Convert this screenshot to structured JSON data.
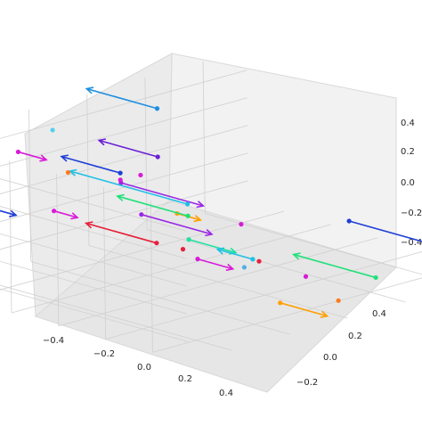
{
  "chart_data": {
    "type": "quiver3d",
    "title": "",
    "grid": true,
    "x_ticks": [
      "−0.4",
      "−0.2",
      "0.0",
      "0.2",
      "0.4"
    ],
    "y_ticks": [
      "−0.2",
      "0.0",
      "0.2",
      "0.4"
    ],
    "z_ticks": [
      "−0.4",
      "−0.2",
      "0.0",
      "0.2",
      "0.4"
    ],
    "vectors": [
      {
        "color": "#9b27e6",
        "tail": [
          0.15,
          0.45,
          0.5
        ],
        "dir": [
          0.35,
          0,
          0
        ]
      },
      {
        "color": "#d81bd8",
        "tail": [
          -0.25,
          0.48,
          0.55
        ],
        "dir": [
          0.12,
          0,
          0
        ]
      },
      {
        "color": "#ffa000",
        "tail": [
          0.45,
          0.5,
          0.45
        ],
        "dir": [
          0.1,
          0,
          0
        ]
      },
      {
        "color": "#1f3fd6",
        "tail": [
          0.5,
          -0.05,
          0.1
        ],
        "dir": [
          0.4,
          0,
          0
        ]
      },
      {
        "color": "#ffa000",
        "tail": [
          0.45,
          0.15,
          -0.4
        ],
        "dir": [
          0.2,
          0,
          0
        ]
      },
      {
        "color": "#20e0a0",
        "tail": [
          0.25,
          0.3,
          0.05
        ],
        "dir": [
          0.2,
          0,
          0
        ]
      },
      {
        "color": "#1f3fd6",
        "tail": [
          -0.45,
          0.45,
          0.05
        ],
        "dir": [
          0.15,
          0,
          0
        ]
      },
      {
        "color": "#d81bd8",
        "tail": [
          -0.2,
          0.4,
          0.1
        ],
        "dir": [
          0.1,
          0,
          0
        ]
      },
      {
        "color": "#e6203a",
        "tail": [
          0.05,
          0.25,
          -0.1
        ],
        "dir": [
          -0.3,
          0,
          0
        ]
      },
      {
        "color": "#9b27e6",
        "tail": [
          -0.2,
          0.1,
          -0.1
        ],
        "dir": [
          0.3,
          0,
          0
        ]
      },
      {
        "color": "#d81bd8",
        "tail": [
          0.1,
          0.15,
          -0.25
        ],
        "dir": [
          0.15,
          0,
          0
        ]
      },
      {
        "color": "#1f3fd6",
        "tail": [
          -0.35,
          0.05,
          0.1
        ],
        "dir": [
          -0.25,
          0,
          0
        ]
      },
      {
        "color": "#1f8fe0",
        "tail": [
          -0.5,
          -0.2,
          0.35
        ],
        "dir": [
          -0.3,
          0,
          0
        ]
      },
      {
        "color": "#6a1fd6",
        "tail": [
          -0.5,
          -0.2,
          0.0
        ],
        "dir": [
          -0.25,
          0,
          0
        ]
      },
      {
        "color": "#20e07a",
        "tail": [
          -0.25,
          -0.1,
          -0.25
        ],
        "dir": [
          -0.3,
          0,
          0
        ]
      },
      {
        "color": "#20bfe6",
        "tail": [
          -0.5,
          -0.3,
          -0.4
        ],
        "dir": [
          -0.5,
          0,
          0
        ]
      },
      {
        "color": "#20bfe6",
        "tail": [
          -0.1,
          -0.2,
          -0.55
        ],
        "dir": [
          -0.15,
          0,
          0
        ]
      },
      {
        "color": "#20e07a",
        "tail": [
          0.3,
          -0.3,
          -0.55
        ],
        "dir": [
          -0.35,
          0,
          0
        ]
      },
      {
        "color": "#ff7a1a",
        "tail": [
          -0.2,
          0.35,
          0.35
        ],
        "dir": [
          0,
          0,
          0
        ]
      },
      {
        "color": "#4fd0f0",
        "tail": [
          -0.45,
          0.2,
          0.45
        ],
        "dir": [
          0,
          0,
          0
        ]
      },
      {
        "color": "#d81bd8",
        "tail": [
          0.35,
          0.2,
          0.15
        ],
        "dir": [
          0,
          0,
          0
        ]
      },
      {
        "color": "#d81bd8",
        "tail": [
          -0.35,
          0.05,
          0.05
        ],
        "dir": [
          0,
          0,
          0
        ]
      },
      {
        "color": "#d81bd8",
        "tail": [
          -0.45,
          -0.1,
          -0.05
        ],
        "dir": [
          0,
          0,
          0
        ]
      },
      {
        "color": "#e6203a",
        "tail": [
          0.1,
          0.2,
          -0.15
        ],
        "dir": [
          0,
          0,
          0
        ]
      },
      {
        "color": "#e6203a",
        "tail": [
          0.3,
          0.1,
          -0.2
        ],
        "dir": [
          0,
          0,
          0
        ]
      },
      {
        "color": "#4fb0e6",
        "tail": [
          0.05,
          -0.05,
          -0.45
        ],
        "dir": [
          0,
          0,
          0
        ]
      },
      {
        "color": "#d81bd8",
        "tail": [
          0.25,
          -0.1,
          -0.45
        ],
        "dir": [
          0,
          0,
          0
        ]
      },
      {
        "color": "#ff7a1a",
        "tail": [
          0.45,
          -0.05,
          -0.5
        ],
        "dir": [
          0,
          0,
          0
        ]
      }
    ]
  }
}
